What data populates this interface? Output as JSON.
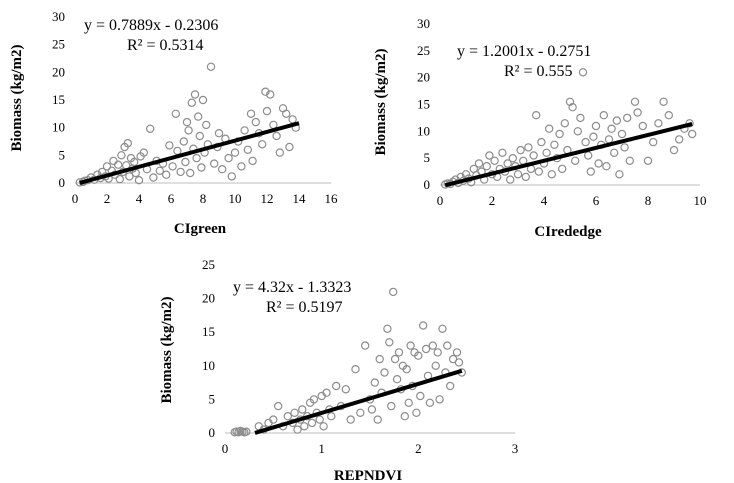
{
  "chart_data": [
    {
      "type": "scatter",
      "xlabel": "CIgreen",
      "ylabel": "Biomass (kg/m2)",
      "xlim": [
        0,
        16
      ],
      "ylim": [
        0,
        30
      ],
      "xticks": [
        "0",
        "2",
        "4",
        "6",
        "8",
        "10",
        "12",
        "14",
        "16"
      ],
      "yticks": [
        "0",
        "5",
        "10",
        "15",
        "20",
        "25",
        "30"
      ],
      "equation": "y = 0.7889x - 0.2306",
      "r2": "R² = 0.5314",
      "trendline": {
        "slope": 0.7889,
        "intercept": -0.2306,
        "x_range": [
          0.3,
          14.0
        ]
      },
      "points": [
        [
          0.3,
          0.1
        ],
        [
          0.5,
          0.2
        ],
        [
          0.6,
          0.4
        ],
        [
          0.8,
          0.5
        ],
        [
          1.0,
          1.0
        ],
        [
          1.2,
          0.6
        ],
        [
          1.4,
          1.5
        ],
        [
          1.6,
          0.9
        ],
        [
          1.7,
          2.0
        ],
        [
          1.9,
          1.2
        ],
        [
          2.0,
          3.0
        ],
        [
          2.1,
          0.8
        ],
        [
          2.3,
          2.2
        ],
        [
          2.4,
          4.0
        ],
        [
          2.5,
          1.5
        ],
        [
          2.7,
          3.3
        ],
        [
          2.8,
          0.7
        ],
        [
          2.9,
          5.0
        ],
        [
          3.0,
          2.0
        ],
        [
          3.1,
          6.5
        ],
        [
          3.2,
          3.2
        ],
        [
          3.3,
          7.2
        ],
        [
          3.4,
          1.2
        ],
        [
          3.5,
          4.5
        ],
        [
          3.6,
          2.6
        ],
        [
          3.7,
          3.8
        ],
        [
          3.8,
          1.8
        ],
        [
          4.0,
          0.5
        ],
        [
          4.1,
          4.8
        ],
        [
          4.3,
          5.5
        ],
        [
          4.5,
          2.5
        ],
        [
          4.7,
          9.8
        ],
        [
          4.9,
          1.0
        ],
        [
          5.1,
          4.0
        ],
        [
          5.3,
          2.2
        ],
        [
          5.5,
          3.5
        ],
        [
          5.7,
          1.5
        ],
        [
          5.9,
          6.8
        ],
        [
          6.1,
          3.0
        ],
        [
          6.3,
          12.5
        ],
        [
          6.4,
          5.8
        ],
        [
          6.6,
          2.0
        ],
        [
          6.8,
          7.5
        ],
        [
          6.9,
          3.8
        ],
        [
          7.0,
          11.0
        ],
        [
          7.1,
          9.5
        ],
        [
          7.2,
          1.8
        ],
        [
          7.3,
          14.5
        ],
        [
          7.4,
          6.2
        ],
        [
          7.5,
          16.0
        ],
        [
          7.6,
          4.5
        ],
        [
          7.7,
          12.0
        ],
        [
          7.8,
          8.5
        ],
        [
          7.9,
          2.8
        ],
        [
          8.0,
          15.0
        ],
        [
          8.1,
          5.5
        ],
        [
          8.2,
          10.5
        ],
        [
          8.3,
          7.0
        ],
        [
          8.5,
          21.0
        ],
        [
          8.7,
          3.5
        ],
        [
          8.9,
          6.5
        ],
        [
          9.0,
          9.0
        ],
        [
          9.2,
          2.5
        ],
        [
          9.4,
          8.0
        ],
        [
          9.6,
          4.5
        ],
        [
          9.8,
          1.2
        ],
        [
          10.0,
          5.5
        ],
        [
          10.2,
          7.5
        ],
        [
          10.4,
          3.0
        ],
        [
          10.6,
          9.5
        ],
        [
          10.8,
          6.0
        ],
        [
          11.0,
          12.5
        ],
        [
          11.1,
          4.0
        ],
        [
          11.3,
          11.0
        ],
        [
          11.5,
          9.0
        ],
        [
          11.7,
          7.0
        ],
        [
          11.9,
          16.5
        ],
        [
          12.0,
          13.0
        ],
        [
          12.2,
          16.0
        ],
        [
          12.4,
          10.5
        ],
        [
          12.6,
          8.5
        ],
        [
          12.8,
          5.5
        ],
        [
          13.0,
          13.5
        ],
        [
          13.2,
          12.5
        ],
        [
          13.4,
          6.5
        ],
        [
          13.6,
          11.5
        ],
        [
          13.8,
          10.0
        ]
      ]
    },
    {
      "type": "scatter",
      "xlabel": "CIrededge",
      "ylabel": "Biomass (kg/m2)",
      "xlim": [
        0,
        10
      ],
      "ylim": [
        0,
        30
      ],
      "xticks": [
        "0",
        "2",
        "4",
        "6",
        "8",
        "10"
      ],
      "yticks": [
        "0",
        "5",
        "10",
        "15",
        "20",
        "25",
        "30"
      ],
      "equation": "y = 1.2001x - 0.2751",
      "r2": "R² = 0.555",
      "trendline": {
        "slope": 1.2001,
        "intercept": -0.2751,
        "x_range": [
          0.2,
          9.7
        ]
      },
      "points": [
        [
          0.2,
          0.1
        ],
        [
          0.3,
          0.3
        ],
        [
          0.4,
          0.2
        ],
        [
          0.5,
          0.6
        ],
        [
          0.6,
          1.0
        ],
        [
          0.7,
          0.4
        ],
        [
          0.8,
          1.5
        ],
        [
          0.9,
          0.8
        ],
        [
          1.0,
          2.0
        ],
        [
          1.1,
          1.2
        ],
        [
          1.2,
          0.5
        ],
        [
          1.3,
          3.0
        ],
        [
          1.4,
          1.8
        ],
        [
          1.5,
          4.0
        ],
        [
          1.6,
          2.5
        ],
        [
          1.7,
          1.0
        ],
        [
          1.8,
          3.5
        ],
        [
          1.9,
          5.5
        ],
        [
          2.0,
          2.0
        ],
        [
          2.1,
          4.5
        ],
        [
          2.2,
          1.5
        ],
        [
          2.3,
          3.0
        ],
        [
          2.4,
          6.0
        ],
        [
          2.5,
          2.5
        ],
        [
          2.6,
          4.0
        ],
        [
          2.7,
          1.0
        ],
        [
          2.8,
          5.0
        ],
        [
          2.9,
          3.5
        ],
        [
          3.0,
          2.0
        ],
        [
          3.1,
          6.5
        ],
        [
          3.2,
          4.5
        ],
        [
          3.3,
          1.5
        ],
        [
          3.4,
          7.0
        ],
        [
          3.5,
          3.0
        ],
        [
          3.6,
          5.5
        ],
        [
          3.7,
          13.0
        ],
        [
          3.8,
          2.5
        ],
        [
          3.9,
          8.0
        ],
        [
          4.0,
          4.0
        ],
        [
          4.1,
          6.0
        ],
        [
          4.2,
          10.5
        ],
        [
          4.3,
          2.0
        ],
        [
          4.4,
          7.5
        ],
        [
          4.5,
          5.0
        ],
        [
          4.6,
          9.5
        ],
        [
          4.7,
          3.0
        ],
        [
          4.8,
          11.5
        ],
        [
          4.9,
          6.5
        ],
        [
          5.0,
          15.5
        ],
        [
          5.1,
          14.5
        ],
        [
          5.2,
          4.5
        ],
        [
          5.3,
          10.0
        ],
        [
          5.4,
          12.5
        ],
        [
          5.5,
          21.0
        ],
        [
          5.6,
          8.0
        ],
        [
          5.7,
          5.5
        ],
        [
          5.8,
          2.5
        ],
        [
          5.9,
          9.0
        ],
        [
          6.0,
          11.0
        ],
        [
          6.1,
          4.0
        ],
        [
          6.2,
          7.5
        ],
        [
          6.3,
          13.0
        ],
        [
          6.4,
          3.5
        ],
        [
          6.5,
          8.5
        ],
        [
          6.6,
          10.5
        ],
        [
          6.7,
          6.0
        ],
        [
          6.8,
          12.0
        ],
        [
          6.9,
          2.0
        ],
        [
          7.0,
          9.5
        ],
        [
          7.1,
          7.0
        ],
        [
          7.2,
          12.5
        ],
        [
          7.3,
          4.5
        ],
        [
          7.5,
          15.5
        ],
        [
          7.6,
          13.5
        ],
        [
          7.8,
          11.0
        ],
        [
          8.0,
          4.5
        ],
        [
          8.2,
          8.0
        ],
        [
          8.4,
          11.5
        ],
        [
          8.6,
          15.5
        ],
        [
          8.8,
          13.0
        ],
        [
          9.0,
          6.5
        ],
        [
          9.2,
          8.5
        ],
        [
          9.4,
          10.5
        ],
        [
          9.6,
          11.5
        ],
        [
          9.7,
          9.5
        ]
      ]
    },
    {
      "type": "scatter",
      "xlabel": "REPNDVI",
      "ylabel": "Biomass (kg/m2)",
      "xlim": [
        0,
        3
      ],
      "ylim": [
        0,
        25
      ],
      "xticks": [
        "0",
        "1",
        "2",
        "3"
      ],
      "yticks": [
        "0",
        "5",
        "10",
        "15",
        "20",
        "25"
      ],
      "equation": "y = 4.32x - 1.3323",
      "r2": "R² = 0.5197",
      "trendline": {
        "slope": 4.32,
        "intercept": -1.3323,
        "x_range": [
          0.31,
          2.45
        ]
      },
      "points": [
        [
          0.1,
          0.1
        ],
        [
          0.12,
          0.2
        ],
        [
          0.14,
          0.1
        ],
        [
          0.16,
          0.3
        ],
        [
          0.18,
          0.2
        ],
        [
          0.2,
          0.1
        ],
        [
          0.22,
          0.2
        ],
        [
          0.35,
          1.0
        ],
        [
          0.4,
          0.5
        ],
        [
          0.45,
          1.5
        ],
        [
          0.5,
          2.0
        ],
        [
          0.55,
          4.0
        ],
        [
          0.6,
          1.0
        ],
        [
          0.65,
          2.5
        ],
        [
          0.7,
          1.5
        ],
        [
          0.72,
          3.0
        ],
        [
          0.75,
          0.5
        ],
        [
          0.78,
          2.0
        ],
        [
          0.8,
          3.5
        ],
        [
          0.82,
          1.0
        ],
        [
          0.85,
          2.5
        ],
        [
          0.88,
          4.5
        ],
        [
          0.9,
          1.5
        ],
        [
          0.92,
          5.0
        ],
        [
          0.95,
          3.0
        ],
        [
          0.98,
          2.0
        ],
        [
          1.0,
          5.5
        ],
        [
          1.02,
          1.0
        ],
        [
          1.05,
          6.0
        ],
        [
          1.08,
          3.5
        ],
        [
          1.1,
          2.5
        ],
        [
          1.15,
          7.0
        ],
        [
          1.2,
          4.0
        ],
        [
          1.25,
          6.5
        ],
        [
          1.3,
          2.0
        ],
        [
          1.35,
          9.5
        ],
        [
          1.4,
          3.0
        ],
        [
          1.45,
          13.0
        ],
        [
          1.5,
          5.0
        ],
        [
          1.52,
          3.5
        ],
        [
          1.55,
          7.5
        ],
        [
          1.58,
          2.0
        ],
        [
          1.6,
          11.0
        ],
        [
          1.62,
          6.0
        ],
        [
          1.65,
          9.0
        ],
        [
          1.68,
          15.5
        ],
        [
          1.7,
          13.5
        ],
        [
          1.72,
          4.0
        ],
        [
          1.74,
          21.0
        ],
        [
          1.76,
          11.0
        ],
        [
          1.78,
          8.0
        ],
        [
          1.8,
          12.0
        ],
        [
          1.82,
          6.5
        ],
        [
          1.84,
          10.0
        ],
        [
          1.86,
          2.5
        ],
        [
          1.88,
          9.5
        ],
        [
          1.9,
          4.5
        ],
        [
          1.92,
          13.0
        ],
        [
          1.94,
          7.0
        ],
        [
          1.96,
          12.0
        ],
        [
          1.98,
          3.0
        ],
        [
          2.0,
          11.5
        ],
        [
          2.02,
          5.5
        ],
        [
          2.05,
          16.0
        ],
        [
          2.08,
          12.5
        ],
        [
          2.1,
          8.5
        ],
        [
          2.12,
          4.5
        ],
        [
          2.15,
          13.0
        ],
        [
          2.18,
          10.0
        ],
        [
          2.2,
          12.0
        ],
        [
          2.22,
          5.0
        ],
        [
          2.25,
          15.5
        ],
        [
          2.28,
          9.0
        ],
        [
          2.3,
          13.0
        ],
        [
          2.33,
          7.0
        ],
        [
          2.36,
          11.0
        ],
        [
          2.4,
          12.0
        ],
        [
          2.42,
          10.5
        ],
        [
          2.45,
          9.0
        ]
      ]
    }
  ]
}
